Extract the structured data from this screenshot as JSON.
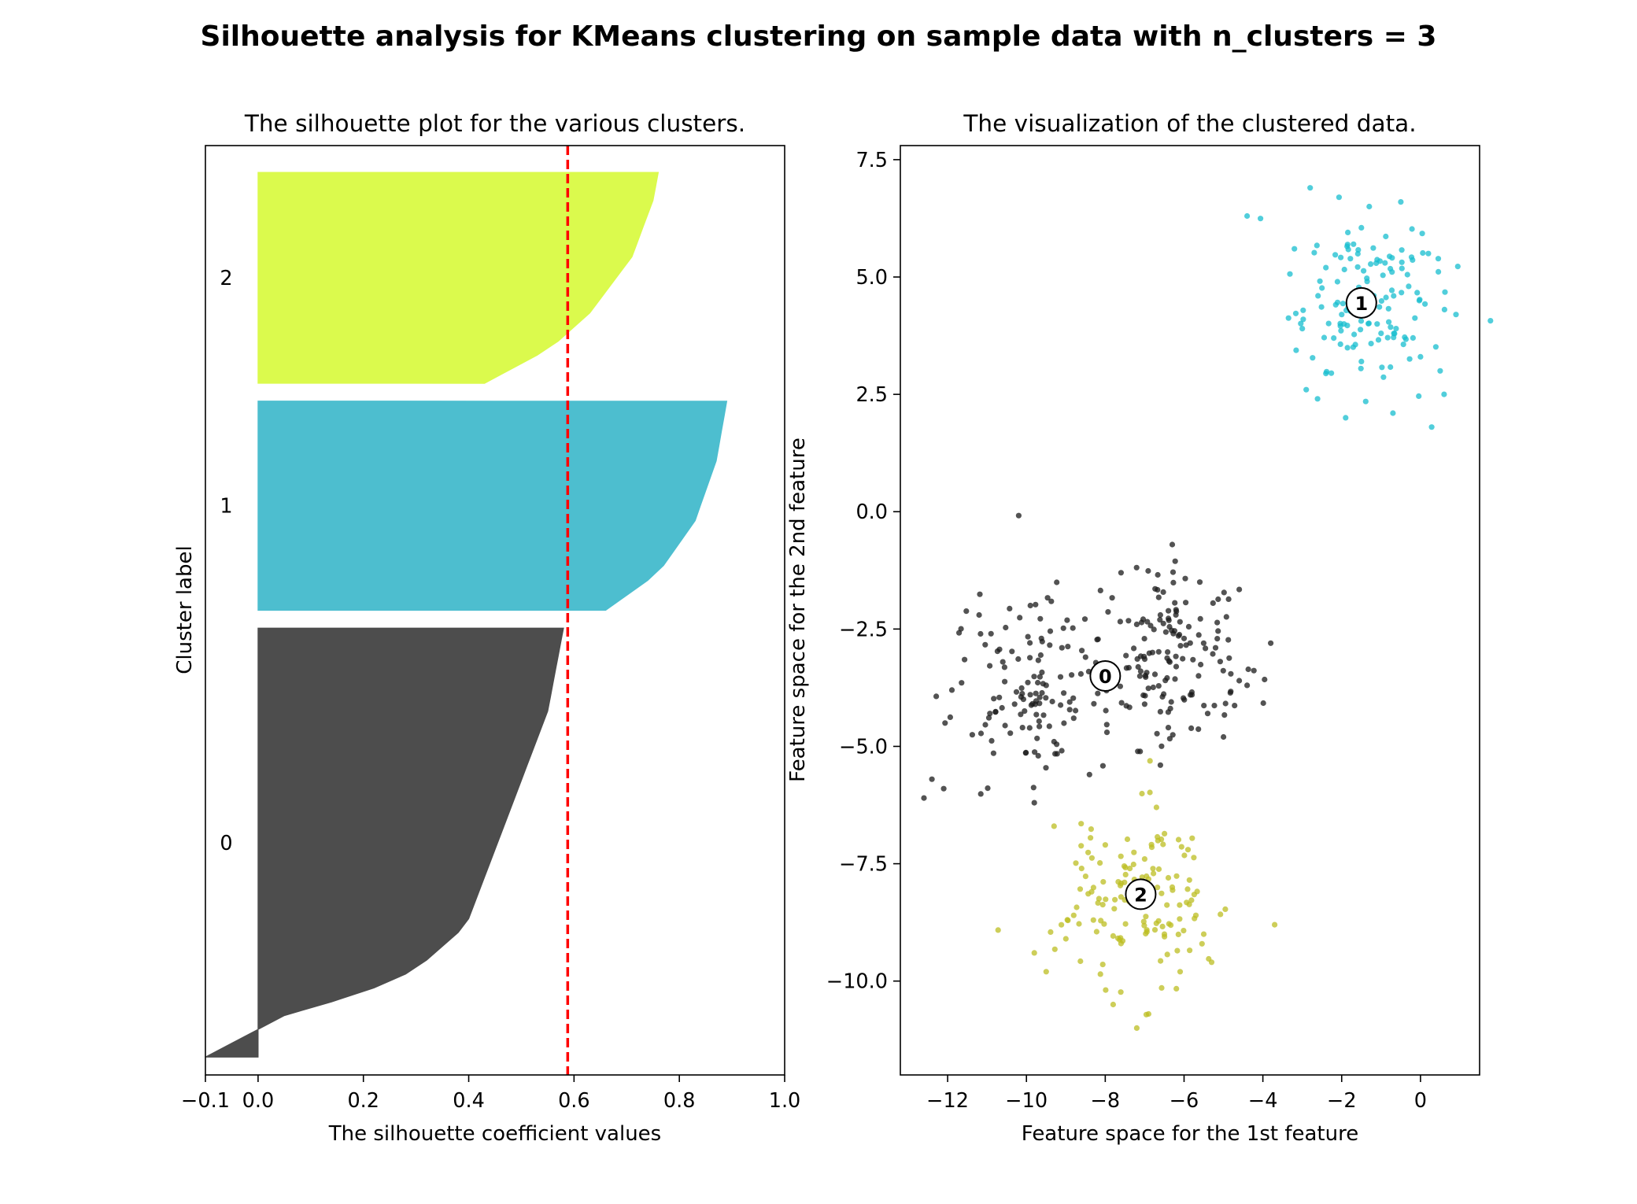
{
  "figure": {
    "title": "Silhouette analysis for KMeans clustering on sample data with n_clusters = 3"
  },
  "chart_data": [
    {
      "type": "area",
      "title": "The silhouette plot for the various clusters.",
      "xlabel": "The silhouette coefficient values",
      "ylabel": "Cluster label",
      "xlim": [
        -0.1,
        1.0
      ],
      "ylim": [
        0,
        520
      ],
      "xticks": [
        -0.1,
        0.0,
        0.2,
        0.4,
        0.6,
        0.8,
        1.0
      ],
      "xtick_labels": [
        "−0.1",
        "0.0",
        "0.2",
        "0.4",
        "0.6",
        "0.8",
        "1.0"
      ],
      "yticks": [],
      "grid": false,
      "average_silhouette_score": 0.588,
      "average_line_color": "#ff0000",
      "clusters": [
        {
          "label": "0",
          "color": "#4d4d4d",
          "y_lower": 10,
          "size": 240,
          "values_sorted_desc": [
            0.58,
            0.575,
            0.57,
            0.565,
            0.56,
            0.555,
            0.55,
            0.54,
            0.53,
            0.52,
            0.51,
            0.5,
            0.49,
            0.48,
            0.47,
            0.46,
            0.45,
            0.44,
            0.43,
            0.42,
            0.41,
            0.4,
            0.38,
            0.35,
            0.32,
            0.28,
            0.22,
            0.14,
            0.05,
            0.0,
            -0.05,
            -0.1
          ]
        },
        {
          "label": "1",
          "color": "#4dbecf",
          "y_lower": 260,
          "size": 117,
          "values_sorted_desc": [
            0.89,
            0.885,
            0.88,
            0.875,
            0.87,
            0.86,
            0.85,
            0.84,
            0.83,
            0.81,
            0.79,
            0.77,
            0.74,
            0.7,
            0.66
          ]
        },
        {
          "label": "2",
          "color": "#dbfa4d",
          "y_lower": 387,
          "size": 118,
          "values_sorted_desc": [
            0.76,
            0.755,
            0.75,
            0.74,
            0.73,
            0.72,
            0.71,
            0.69,
            0.67,
            0.65,
            0.63,
            0.6,
            0.57,
            0.53,
            0.48,
            0.43
          ]
        }
      ]
    },
    {
      "type": "scatter",
      "title": "The visualization of the clustered data.",
      "xlabel": "Feature space for the 1st feature",
      "ylabel": "Feature space for the 2nd feature",
      "xlim": [
        -13.2,
        1.5
      ],
      "ylim": [
        -12.0,
        7.8
      ],
      "xticks": [
        -12,
        -10,
        -8,
        -6,
        -4,
        -2,
        0
      ],
      "xtick_labels": [
        "−12",
        "−10",
        "−8",
        "−6",
        "−4",
        "−2",
        "0"
      ],
      "yticks": [
        7.5,
        5.0,
        2.5,
        0.0,
        -2.5,
        -5.0,
        -7.5,
        -10.0
      ],
      "ytick_labels": [
        "7.5",
        "5.0",
        "2.5",
        "0.0",
        "−2.5",
        "−5.0",
        "−7.5",
        "−10.0"
      ],
      "grid": false,
      "clusters": [
        {
          "label": "0",
          "color": "#1a1a1a",
          "center": [
            -8.0,
            -3.5
          ],
          "sample_points": [
            [
              -12.6,
              -6.1
            ],
            [
              -12.4,
              -5.7
            ],
            [
              -12.1,
              -5.9
            ],
            [
              -11.2,
              -2.2
            ],
            [
              -10.9,
              -2.6
            ],
            [
              -10.6,
              -3.2
            ],
            [
              -10.3,
              -4.1
            ],
            [
              -10.1,
              -4.6
            ],
            [
              -9.9,
              -2.0
            ],
            [
              -9.7,
              -5.2
            ],
            [
              -9.5,
              -3.7
            ],
            [
              -9.3,
              -4.9
            ],
            [
              -9.1,
              -2.9
            ],
            [
              -8.8,
              -4.4
            ],
            [
              -8.5,
              -3.1
            ],
            [
              -7.6,
              -1.3
            ],
            [
              -7.2,
              -2.4
            ],
            [
              -7.0,
              -4.1
            ],
            [
              -6.8,
              -3.0
            ],
            [
              -6.6,
              -2.2
            ],
            [
              -6.4,
              -4.6
            ],
            [
              -6.2,
              -3.3
            ],
            [
              -6.0,
              -2.7
            ],
            [
              -5.8,
              -3.9
            ],
            [
              -5.6,
              -1.5
            ],
            [
              -5.4,
              -4.3
            ],
            [
              -5.2,
              -2.9
            ],
            [
              -5.0,
              -4.8
            ],
            [
              -4.6,
              -3.6
            ],
            [
              -4.4,
              -3.7
            ],
            [
              -3.8,
              -2.8
            ],
            [
              -9.8,
              -6.2
            ],
            [
              -8.4,
              -5.6
            ],
            [
              -6.6,
              -5.4
            ],
            [
              -6.3,
              -0.7
            ],
            [
              -7.1,
              -3.4
            ]
          ]
        },
        {
          "label": "1",
          "color": "#17becf",
          "center": [
            -1.5,
            4.45
          ],
          "sample_points": [
            [
              -4.4,
              6.3
            ],
            [
              -3.2,
              5.6
            ],
            [
              -3.0,
              3.9
            ],
            [
              -2.8,
              6.9
            ],
            [
              -2.6,
              4.6
            ],
            [
              -2.4,
              5.2
            ],
            [
              -2.2,
              3.7
            ],
            [
              -2.0,
              4.2
            ],
            [
              -1.9,
              2.0
            ],
            [
              -1.7,
              5.7
            ],
            [
              -1.5,
              3.2
            ],
            [
              -1.3,
              6.5
            ],
            [
              -1.1,
              4.0
            ],
            [
              -0.9,
              5.3
            ],
            [
              -0.7,
              2.1
            ],
            [
              -0.5,
              6.6
            ],
            [
              -0.3,
              4.8
            ],
            [
              0.0,
              3.3
            ],
            [
              0.2,
              5.5
            ],
            [
              0.5,
              3.0
            ],
            [
              0.6,
              2.5
            ],
            [
              0.9,
              4.2
            ],
            [
              -2.9,
              2.6
            ],
            [
              -1.0,
              3.8
            ]
          ]
        },
        {
          "label": "2",
          "color": "#bcbd22",
          "center": [
            -7.1,
            -8.15
          ],
          "sample_points": [
            [
              -9.8,
              -9.4
            ],
            [
              -9.5,
              -9.8
            ],
            [
              -9.0,
              -9.1
            ],
            [
              -8.6,
              -7.6
            ],
            [
              -8.3,
              -8.7
            ],
            [
              -8.0,
              -7.1
            ],
            [
              -7.8,
              -10.5
            ],
            [
              -7.6,
              -9.2
            ],
            [
              -7.4,
              -8.3
            ],
            [
              -7.2,
              -11.0
            ],
            [
              -7.0,
              -7.4
            ],
            [
              -6.9,
              -10.7
            ],
            [
              -6.7,
              -6.3
            ],
            [
              -6.5,
              -9.0
            ],
            [
              -6.3,
              -8.0
            ],
            [
              -6.1,
              -9.8
            ],
            [
              -5.9,
              -7.2
            ],
            [
              -5.7,
              -8.6
            ],
            [
              -5.5,
              -9.0
            ],
            [
              -5.3,
              -9.6
            ],
            [
              -3.7,
              -8.8
            ],
            [
              -9.3,
              -6.7
            ],
            [
              -8.8,
              -8.6
            ],
            [
              -6.4,
              -7.8
            ]
          ]
        }
      ]
    }
  ]
}
